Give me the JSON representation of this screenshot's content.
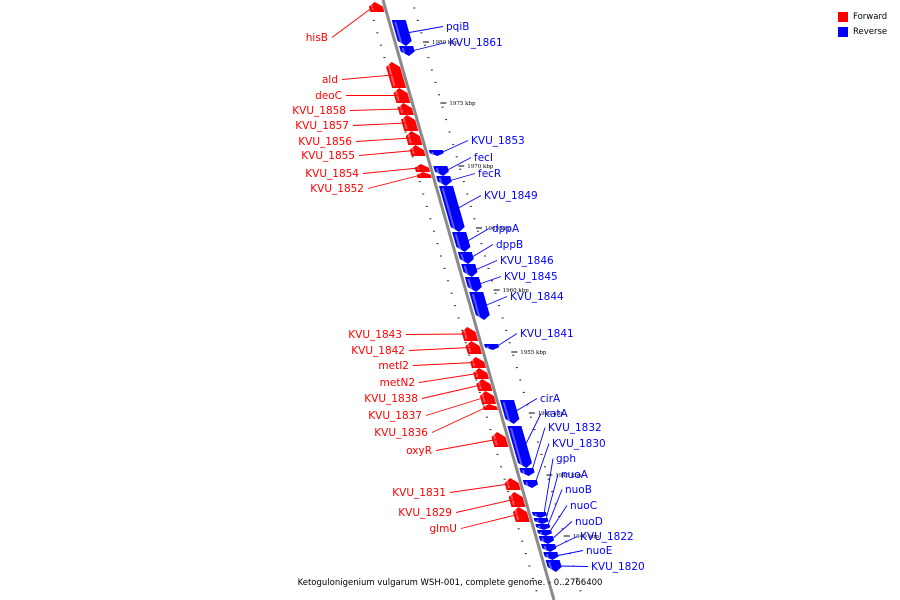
{
  "caption": "Ketogulonigenium vulgarum WSH-001, complete genome. - 0..2766400",
  "colors": {
    "forward": "#ff0000",
    "reverse": "#0000ff",
    "backbone": "#888888"
  },
  "legend": [
    {
      "label": "Forward",
      "color": "#ff0000"
    },
    {
      "label": "Reverse",
      "color": "#0000ff"
    }
  ],
  "ticks": [
    "1980 kbp",
    "1975 kbp",
    "1970 kbp",
    "1965 kbp",
    "1960 kbp",
    "1955 kbp",
    "1950 kbp",
    "1945 kbp",
    "1940 kbp"
  ],
  "forward_genes": [
    "hisB",
    "ald",
    "deoC",
    "KVU_1858",
    "KVU_1857",
    "KVU_1856",
    "KVU_1855",
    "KVU_1854",
    "KVU_1852",
    "KVU_1843",
    "KVU_1842",
    "metI2",
    "metN2",
    "KVU_1838",
    "KVU_1837",
    "KVU_1836",
    "oxyR",
    "KVU_1831",
    "KVU_1829",
    "glmU"
  ],
  "reverse_genes": [
    "pqiB",
    "KVU_1861",
    "KVU_1853",
    "fecI",
    "fecR",
    "KVU_1849",
    "dppA",
    "dppB",
    "KVU_1846",
    "KVU_1845",
    "KVU_1844",
    "KVU_1841",
    "cirA",
    "katA",
    "KVU_1832",
    "KVU_1830",
    "gph",
    "nuoA",
    "nuoB",
    "nuoC",
    "nuoD",
    "KVU_1822",
    "nuoE",
    "KVU_1820"
  ]
}
